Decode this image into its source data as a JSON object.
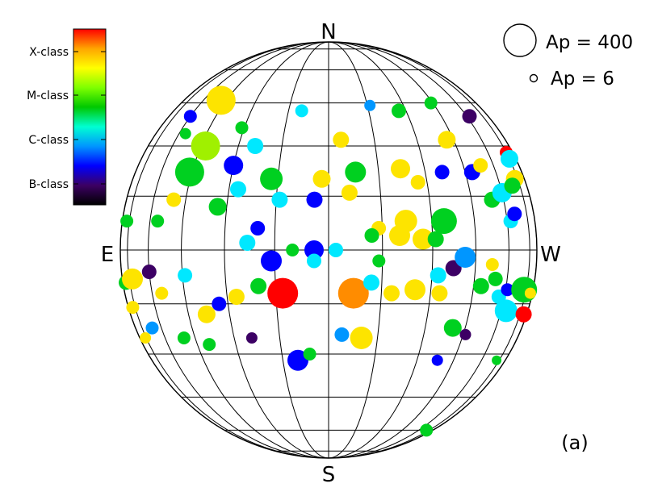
{
  "chart_data": {
    "type": "scatter",
    "title": "",
    "panel_label": "(a)",
    "compass": {
      "north": "N",
      "south": "S",
      "east": "E",
      "west": "W"
    },
    "colorbar": {
      "ticks": [
        "X-class",
        "M-class",
        "C-class",
        "B-class"
      ],
      "stops": [
        "#ff0000",
        "#ffa500",
        "#ffff00",
        "#7fff00",
        "#00c800",
        "#00ffd2",
        "#0096ff",
        "#0000ff",
        "#3c0064",
        "#000000"
      ]
    },
    "size_legend": [
      {
        "label": "Ap  =  400",
        "ap": 400
      },
      {
        "label": "Ap  =  6",
        "ap": 6
      }
    ],
    "grid": true,
    "longitude_lines_deg": [
      -90,
      -75,
      -60,
      -45,
      -30,
      -15,
      0,
      15,
      30,
      45,
      60,
      75,
      90
    ],
    "latitude_lines_deg": [
      -75,
      -60,
      -45,
      -30,
      -15,
      0,
      15,
      30,
      45,
      60,
      75
    ],
    "xlim": [
      -90,
      90
    ],
    "ylim": [
      -90,
      90
    ],
    "xlabel": "",
    "ylabel": "",
    "series": [
      {
        "x_unit": "heliographic longitude (deg, + = West)",
        "y_unit": "heliographic latitude (deg, + = North)",
        "points": [
          {
            "x": -48,
            "y": 46,
            "r": 18,
            "c": "#fde400"
          },
          {
            "x": -43,
            "y": 30,
            "r": 18,
            "c": "#a0f000"
          },
          {
            "x": -46,
            "y": 22,
            "r": 18,
            "c": "#00d020"
          },
          {
            "x": -30,
            "y": 24,
            "r": 12,
            "c": "#0000ff"
          },
          {
            "x": -27,
            "y": 17,
            "r": 10,
            "c": "#00e8ff"
          },
          {
            "x": -33,
            "y": 12,
            "r": 11,
            "c": "#00d020"
          },
          {
            "x": -4,
            "y": 14,
            "r": 10,
            "c": "#0000ff"
          },
          {
            "x": 8,
            "y": 22,
            "r": 13,
            "c": "#00d020"
          },
          {
            "x": 14,
            "y": 6,
            "r": 9,
            "c": "#fde400"
          },
          {
            "x": 22,
            "y": 23,
            "r": 12,
            "c": "#fde400"
          },
          {
            "x": 27,
            "y": 19,
            "r": 9,
            "c": "#fde400"
          },
          {
            "x": 42,
            "y": 32,
            "r": 11,
            "c": "#fde400"
          },
          {
            "x": 27,
            "y": 42,
            "r": 9,
            "c": "#00d020"
          },
          {
            "x": 44,
            "y": 45,
            "r": 8,
            "c": "#00d020"
          },
          {
            "x": 54,
            "y": 14,
            "r": 10,
            "c": "#00d020"
          },
          {
            "x": 60,
            "y": 16,
            "r": 12,
            "c": "#00e8ff"
          },
          {
            "x": 62,
            "y": 8,
            "r": 9,
            "c": "#00e8ff"
          },
          {
            "x": 65,
            "y": 10,
            "r": 9,
            "c": "#0000ff"
          },
          {
            "x": 75,
            "y": 28,
            "r": 8,
            "c": "#ff0000"
          },
          {
            "x": 75,
            "y": 26,
            "r": 11,
            "c": "#00e8ff"
          },
          {
            "x": 72,
            "y": 20,
            "r": 11,
            "c": "#fde400"
          },
          {
            "x": 68,
            "y": 18,
            "r": 10,
            "c": "#00d020"
          },
          {
            "x": 22,
            "y": 8,
            "r": 14,
            "c": "#fde400"
          },
          {
            "x": 20,
            "y": 4,
            "r": 13,
            "c": "#fde400"
          },
          {
            "x": -4,
            "y": 0,
            "r": 12,
            "c": "#0000ff"
          },
          {
            "x": 12,
            "y": 4,
            "r": 9,
            "c": "#00d020"
          },
          {
            "x": 34,
            "y": 8,
            "r": 16,
            "c": "#00d020"
          },
          {
            "x": -20,
            "y": 6,
            "r": 9,
            "c": "#0000ff"
          },
          {
            "x": -23,
            "y": 2,
            "r": 10,
            "c": "#00e8ff"
          },
          {
            "x": -14,
            "y": 14,
            "r": 10,
            "c": "#00e8ff"
          },
          {
            "x": -2,
            "y": 20,
            "r": 11,
            "c": "#fde400"
          },
          {
            "x": 6,
            "y": 16,
            "r": 10,
            "c": "#fde400"
          },
          {
            "x": 36,
            "y": 22,
            "r": 9,
            "c": "#0000ff"
          },
          {
            "x": 48,
            "y": 22,
            "r": 10,
            "c": "#0000ff"
          },
          {
            "x": 53,
            "y": 24,
            "r": 9,
            "c": "#fde400"
          },
          {
            "x": 62,
            "y": 40,
            "r": 9,
            "c": "#3c0064"
          },
          {
            "x": 4,
            "y": 32,
            "r": 10,
            "c": "#fde400"
          },
          {
            "x": -17,
            "y": 20,
            "r": 14,
            "c": "#00d020"
          },
          {
            "x": -24,
            "y": 30,
            "r": 10,
            "c": "#00e8ff"
          },
          {
            "x": -31,
            "y": 36,
            "r": 8,
            "c": "#00d020"
          },
          {
            "x": -50,
            "y": 14,
            "r": 9,
            "c": "#fde400"
          },
          {
            "x": -56,
            "y": 8,
            "r": 8,
            "c": "#00d020"
          },
          {
            "x": -78,
            "y": 8,
            "r": 8,
            "c": "#00d020"
          },
          {
            "x": 10,
            "y": -25,
            "r": 14,
            "c": "#fde400"
          },
          {
            "x": 7,
            "y": -12,
            "r": 19,
            "c": "#ff8c00"
          },
          {
            "x": -13,
            "y": -12,
            "r": 19,
            "c": "#ff0000"
          },
          {
            "x": -16,
            "y": -3,
            "r": 13,
            "c": "#0000ff"
          },
          {
            "x": -4,
            "y": -3,
            "r": 9,
            "c": "#00e8ff"
          },
          {
            "x": 18,
            "y": -12,
            "r": 10,
            "c": "#fde400"
          },
          {
            "x": 25,
            "y": -11,
            "r": 13,
            "c": "#fde400"
          },
          {
            "x": 32,
            "y": -7,
            "r": 10,
            "c": "#00e8ff"
          },
          {
            "x": 33,
            "y": -12,
            "r": 10,
            "c": "#fde400"
          },
          {
            "x": 37,
            "y": -5,
            "r": 10,
            "c": "#3c0064"
          },
          {
            "x": 41,
            "y": -2,
            "r": 13,
            "c": "#0096ff"
          },
          {
            "x": 27,
            "y": 3,
            "r": 13,
            "c": "#fde400"
          },
          {
            "x": 31,
            "y": 3,
            "r": 10,
            "c": "#00d020"
          },
          {
            "x": 48,
            "y": -10,
            "r": 10,
            "c": "#00d020"
          },
          {
            "x": 52,
            "y": -4,
            "r": 8,
            "c": "#fde400"
          },
          {
            "x": 54,
            "y": -8,
            "r": 9,
            "c": "#00d020"
          },
          {
            "x": 57,
            "y": -13,
            "r": 9,
            "c": "#00e8ff"
          },
          {
            "x": 61,
            "y": -11,
            "r": 8,
            "c": "#0000ff"
          },
          {
            "x": 63,
            "y": -17,
            "r": 14,
            "c": "#00e8ff"
          },
          {
            "x": 73,
            "y": -11,
            "r": 16,
            "c": "#00d020"
          },
          {
            "x": 80,
            "y": -18,
            "r": 10,
            "c": "#ff0000"
          },
          {
            "x": 82,
            "y": -12,
            "r": 7,
            "c": "#fde400"
          },
          {
            "x": -80,
            "y": -9,
            "r": 9,
            "c": "#00d020"
          },
          {
            "x": -78,
            "y": -16,
            "r": 8,
            "c": "#fde400"
          },
          {
            "x": -72,
            "y": -8,
            "r": 13,
            "c": "#fde400"
          },
          {
            "x": -60,
            "y": -6,
            "r": 9,
            "c": "#3c0064"
          },
          {
            "x": -55,
            "y": -12,
            "r": 8,
            "c": "#fde400"
          },
          {
            "x": -44,
            "y": -7,
            "r": 9,
            "c": "#00e8ff"
          },
          {
            "x": -38,
            "y": -18,
            "r": 11,
            "c": "#fde400"
          },
          {
            "x": -33,
            "y": -15,
            "r": 9,
            "c": "#0000ff"
          },
          {
            "x": -27,
            "y": -13,
            "r": 10,
            "c": "#fde400"
          },
          {
            "x": -24,
            "y": -25,
            "r": 7,
            "c": "#3c0064"
          },
          {
            "x": -20,
            "y": -10,
            "r": 10,
            "c": "#00d020"
          },
          {
            "x": -10,
            "y": -32,
            "r": 13,
            "c": "#0000ff"
          },
          {
            "x": -6,
            "y": -30,
            "r": 8,
            "c": "#00d020"
          },
          {
            "x": 4,
            "y": -24,
            "r": 9,
            "c": "#0096ff"
          },
          {
            "x": 12,
            "y": -9,
            "r": 10,
            "c": "#00e8ff"
          },
          {
            "x": 40,
            "y": -22,
            "r": 11,
            "c": "#00d020"
          },
          {
            "x": 46,
            "y": -24,
            "r": 7,
            "c": "#3c0064"
          },
          {
            "x": 38,
            "y": -32,
            "r": 7,
            "c": "#0000ff"
          },
          {
            "x": 72,
            "y": -32,
            "r": 6,
            "c": "#00d020"
          },
          {
            "x": 70,
            "y": -60,
            "r": 8,
            "c": "#00d020"
          },
          {
            "x": -50,
            "y": -25,
            "r": 8,
            "c": "#00d020"
          },
          {
            "x": -66,
            "y": -22,
            "r": 8,
            "c": "#0096ff"
          },
          {
            "x": -76,
            "y": -25,
            "r": 7,
            "c": "#fde400"
          },
          {
            "x": -40,
            "y": -27,
            "r": 8,
            "c": "#00d020"
          },
          {
            "x": 2,
            "y": 0,
            "r": 9,
            "c": "#00e8ff"
          },
          {
            "x": -10,
            "y": 0,
            "r": 8,
            "c": "#00d020"
          },
          {
            "x": 14,
            "y": -3,
            "r": 8,
            "c": "#00d020"
          },
          {
            "x": -56,
            "y": 34,
            "r": 7,
            "c": "#00d020"
          },
          {
            "x": -60,
            "y": 40,
            "r": 8,
            "c": "#0000ff"
          },
          {
            "x": -10,
            "y": 42,
            "r": 8,
            "c": "#00e8ff"
          },
          {
            "x": 16,
            "y": 44,
            "r": 7,
            "c": "#0096ff"
          }
        ]
      }
    ]
  }
}
